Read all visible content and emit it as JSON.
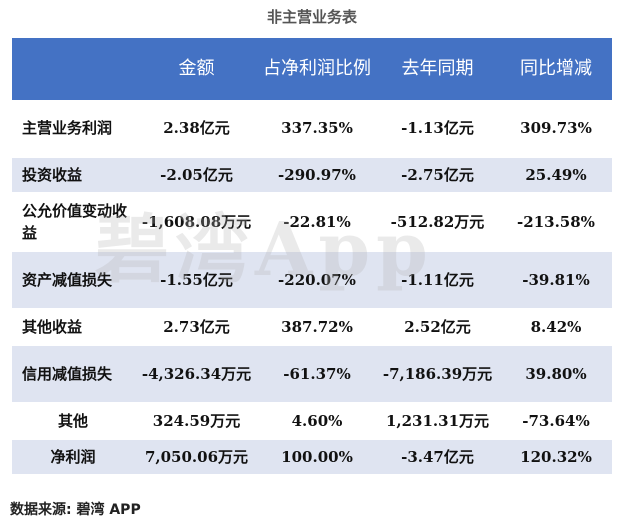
{
  "title": "非主营业务表",
  "headers": [
    "",
    "金额",
    "占净利润比例",
    "去年同期",
    "同比增减"
  ],
  "rows": [
    {
      "name": "主营业务利润",
      "amount": "2.38亿元",
      "ratio": "337.35%",
      "last_year": "-1.13亿元",
      "yoy": "309.73%"
    },
    {
      "name": "投资收益",
      "amount": "-2.05亿元",
      "ratio": "-290.97%",
      "last_year": "-2.75亿元",
      "yoy": "25.49%"
    },
    {
      "name": "公允价值变动收益",
      "amount": "-1,608.08万元",
      "ratio": "-22.81%",
      "last_year": "-512.82万元",
      "yoy": "-213.58%"
    },
    {
      "name": "资产减值损失",
      "amount": "-1.55亿元",
      "ratio": "-220.07%",
      "last_year": "-1.11亿元",
      "yoy": "-39.81%"
    },
    {
      "name": "其他收益",
      "amount": "2.73亿元",
      "ratio": "387.72%",
      "last_year": "2.52亿元",
      "yoy": "8.42%"
    },
    {
      "name": "信用减值损失",
      "amount": "-4,326.34万元",
      "ratio": "-61.37%",
      "last_year": "-7,186.39万元",
      "yoy": "39.80%"
    },
    {
      "name": "其他",
      "amount": "324.59万元",
      "ratio": "4.60%",
      "last_year": "1,231.31万元",
      "yoy": "-73.64%"
    },
    {
      "name": "净利润",
      "amount": "7,050.06万元",
      "ratio": "100.00%",
      "last_year": "-3.47亿元",
      "yoy": "120.32%"
    }
  ],
  "watermark": "碧湾App",
  "source": "数据来源: 碧湾 APP"
}
